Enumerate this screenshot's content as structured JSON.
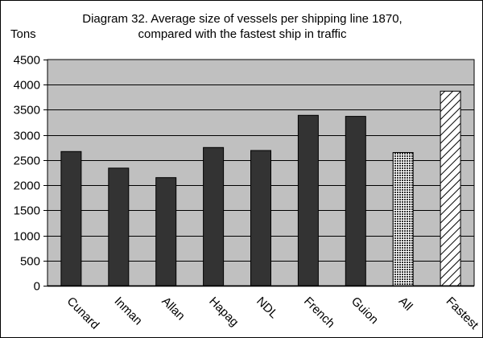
{
  "chart_data": {
    "type": "bar",
    "title": "Diagram 32. Average size of vessels per shipping line 1870,",
    "subtitle": "compared with the fastest ship in traffic",
    "ylabel": "Tons",
    "xlabel": "",
    "categories": [
      "Cunard",
      "Inman",
      "Allan",
      "Hapag",
      "NDL",
      "French",
      "Guion",
      "All",
      "Fastest"
    ],
    "values": [
      2670,
      2340,
      2150,
      2750,
      2690,
      3390,
      3370,
      2650,
      3870
    ],
    "fills": [
      "solid",
      "solid",
      "solid",
      "solid",
      "solid",
      "solid",
      "solid",
      "crosshatch",
      "diagonal"
    ],
    "ylim": [
      0,
      4500
    ],
    "yticks": [
      0,
      500,
      1000,
      1500,
      2000,
      2500,
      3000,
      3500,
      4000,
      4500
    ],
    "grid": true,
    "legend": "none",
    "colors": {
      "plot_bg": "#c0c0c0",
      "bar": "#333333",
      "gridline": "#000000"
    }
  }
}
